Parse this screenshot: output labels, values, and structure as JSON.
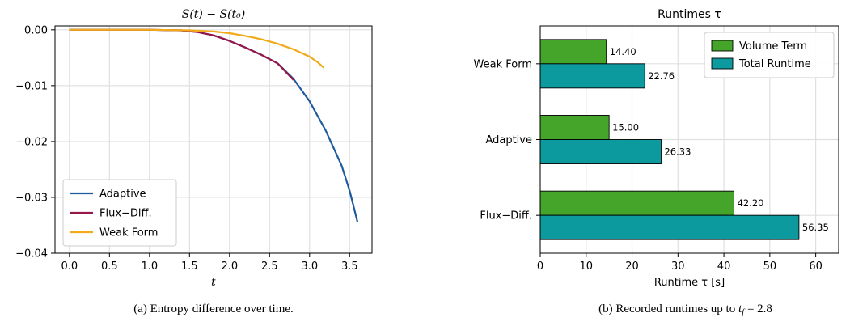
{
  "chart_data": [
    {
      "type": "line",
      "title": "S(t) − S(t₀)",
      "xlabel": "t",
      "ylabel": "",
      "xlim": [
        -0.18,
        3.78
      ],
      "ylim": [
        -0.04,
        0.0007
      ],
      "xticks": [
        "0.0",
        "0.5",
        "1.0",
        "1.5",
        "2.0",
        "2.5",
        "3.0",
        "3.5"
      ],
      "xtick_values": [
        0,
        0.5,
        1,
        1.5,
        2,
        2.5,
        3,
        3.5
      ],
      "yticks": [
        "0.00",
        "−0.01",
        "−0.02",
        "−0.03",
        "−0.04"
      ],
      "ytick_values": [
        0,
        -0.01,
        -0.02,
        -0.03,
        -0.04
      ],
      "grid": true,
      "legend_position": "lower-left",
      "series": [
        {
          "name": "Adaptive",
          "color": "#1f5a9e",
          "x": [
            0,
            0.5,
            1.0,
            1.4,
            1.6,
            1.8,
            2.0,
            2.2,
            2.4,
            2.6,
            2.8,
            3.0,
            3.2,
            3.4,
            3.5,
            3.6
          ],
          "y": [
            0,
            0,
            0,
            -0.0001,
            -0.0004,
            -0.001,
            -0.002,
            -0.0032,
            -0.0045,
            -0.006,
            -0.0088,
            -0.0128,
            -0.018,
            -0.0243,
            -0.0288,
            -0.0345
          ]
        },
        {
          "name": "Flux−Diff.",
          "color": "#96184a",
          "x": [
            0,
            0.5,
            1.0,
            1.4,
            1.6,
            1.8,
            2.0,
            2.2,
            2.4,
            2.6,
            2.8
          ],
          "y": [
            0,
            0,
            0,
            -0.0001,
            -0.0004,
            -0.001,
            -0.002,
            -0.0032,
            -0.0045,
            -0.006,
            -0.009
          ]
        },
        {
          "name": "Weak Form",
          "color": "#f2a91a",
          "x": [
            0,
            0.5,
            1.0,
            1.5,
            1.8,
            2.0,
            2.2,
            2.4,
            2.6,
            2.8,
            3.0,
            3.1,
            3.18
          ],
          "y": [
            0,
            0,
            0,
            -0.0001,
            -0.0003,
            -0.0006,
            -0.0011,
            -0.0017,
            -0.0025,
            -0.0035,
            -0.0048,
            -0.0058,
            -0.0068
          ]
        }
      ]
    },
    {
      "type": "bar",
      "orientation": "horizontal",
      "title": "Runtimes τ",
      "xlabel": "Runtime τ [s]",
      "ylabel": "",
      "xlim": [
        0,
        65
      ],
      "xticks": [
        "0",
        "10",
        "20",
        "30",
        "40",
        "50",
        "60"
      ],
      "xtick_values": [
        0,
        10,
        20,
        30,
        40,
        50,
        60
      ],
      "categories": [
        "Weak Form",
        "Adaptive",
        "Flux−Diff."
      ],
      "grid": true,
      "legend_position": "top-right",
      "series": [
        {
          "name": "Volume Term",
          "color": "#45a52a",
          "values": [
            14.4,
            15.0,
            42.2
          ],
          "labels": [
            "14.40",
            "15.00",
            "42.20"
          ]
        },
        {
          "name": "Total Runtime",
          "color": "#0d9a9e",
          "values": [
            22.76,
            26.33,
            56.35
          ],
          "labels": [
            "22.76",
            "26.33",
            "56.35"
          ]
        }
      ]
    }
  ],
  "captions": {
    "left": "(a) Entropy difference over time.",
    "right_prefix": "(b) Recorded runtimes up to ",
    "right_math": "t",
    "right_sub": "f",
    "right_suffix": " = 2.8"
  }
}
